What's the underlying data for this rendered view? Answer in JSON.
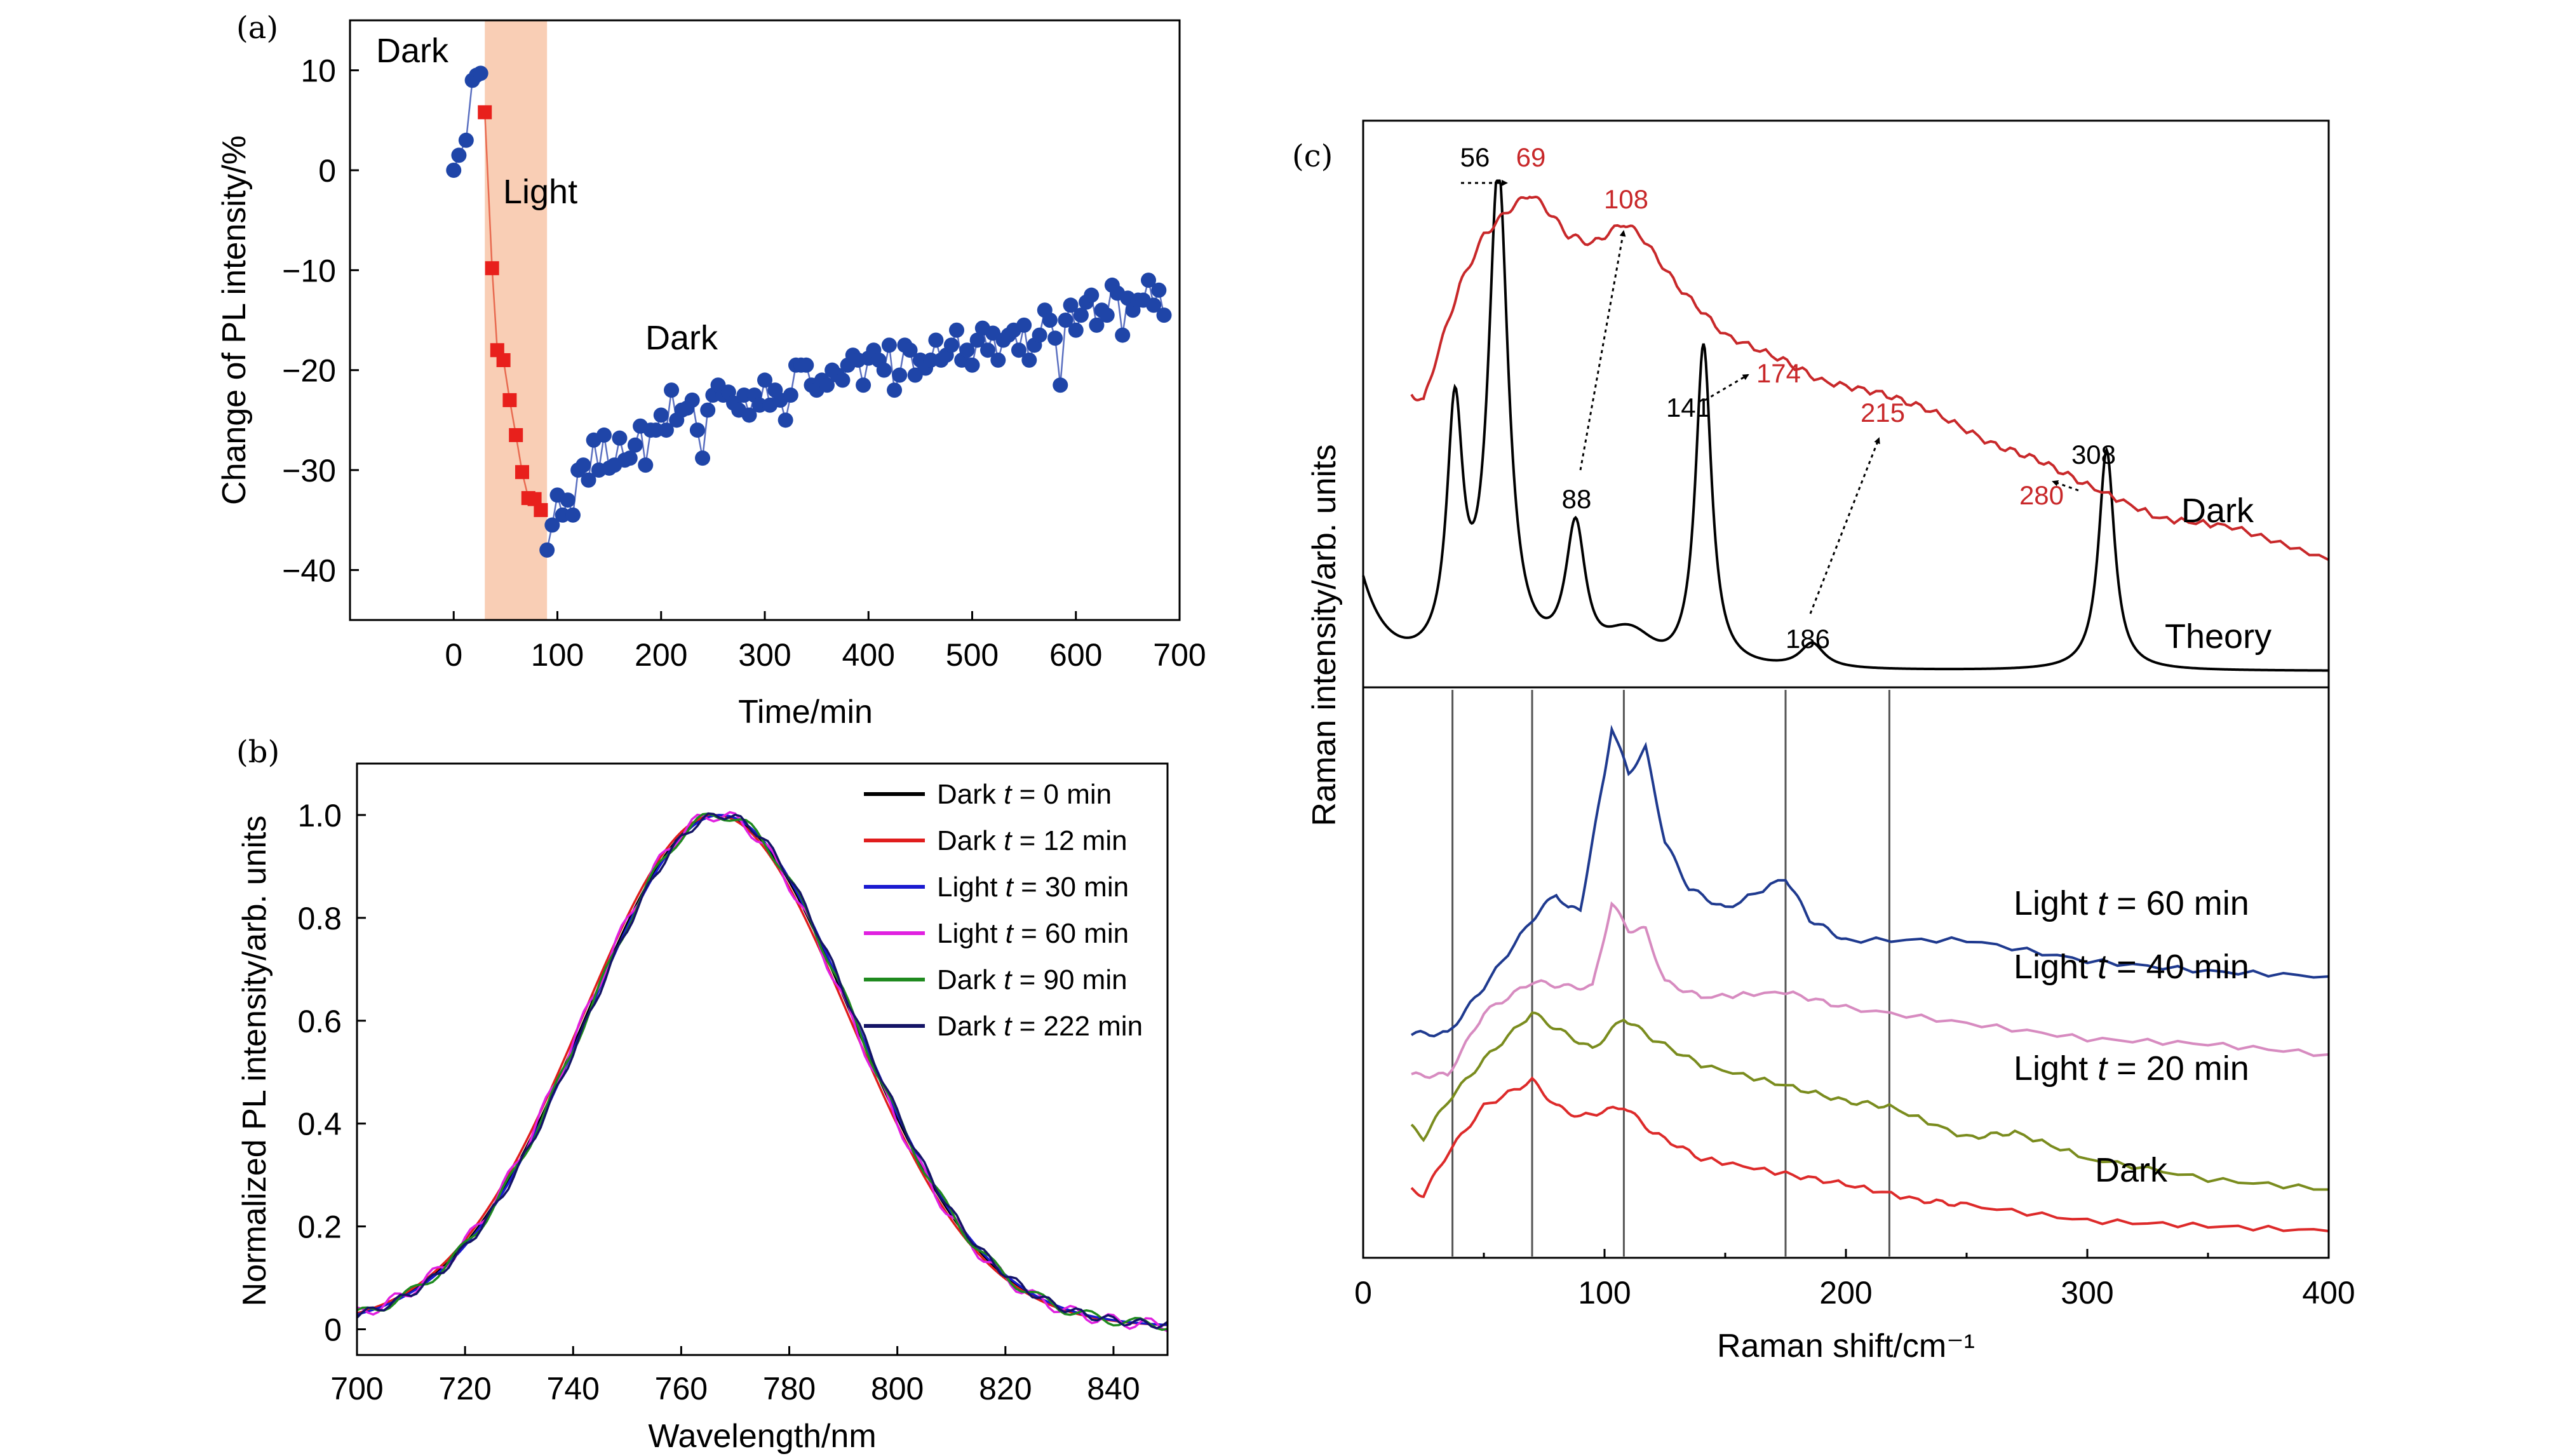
{
  "colors": {
    "dark_series": "#1f45a8",
    "light_series": "#e8201c",
    "light_band": "#f8c6a8",
    "exp_red": "#c8282a",
    "theory": "#000000"
  },
  "chart_data": [
    {
      "panel": "(a)",
      "type": "scatter",
      "xlabel": "Time/min",
      "ylabel": "Change of PL intensity/%",
      "xlim": [
        -100,
        700
      ],
      "ylim": [
        -45,
        15
      ],
      "xticks": [
        0,
        100,
        200,
        300,
        400,
        500,
        600,
        700
      ],
      "yticks": [
        10,
        0,
        -10,
        -20,
        -30,
        -40
      ],
      "annotations": [
        "Dark",
        "Light",
        "Dark"
      ],
      "highlight_band": [
        30,
        90
      ],
      "series": [
        {
          "key": "dark_before",
          "x": [
            0,
            5,
            12,
            18,
            22,
            26
          ],
          "y": [
            0,
            1.5,
            3,
            9,
            9.5,
            9.7
          ]
        },
        {
          "key": "light",
          "x": [
            30,
            37,
            42,
            48,
            54,
            60,
            66,
            72,
            78,
            84
          ],
          "y": [
            5.8,
            -9.8,
            -18,
            -19,
            -23,
            -26.5,
            -30.2,
            -32.8,
            -32.9,
            -34
          ]
        },
        {
          "key": "dark_after",
          "x": [
            90,
            95,
            100,
            105,
            110,
            115,
            120,
            125,
            130,
            135,
            140,
            145,
            150,
            155,
            160,
            165,
            170,
            175,
            180,
            185,
            190,
            195,
            200,
            205,
            210,
            215,
            220,
            225,
            230,
            235,
            240,
            245,
            250,
            255,
            260,
            265,
            270,
            275,
            280,
            285,
            290,
            295,
            300,
            305,
            310,
            315,
            320,
            325,
            330,
            335,
            340,
            345,
            350,
            355,
            360,
            365,
            370,
            375,
            380,
            385,
            390,
            395,
            400,
            405,
            410,
            415,
            420,
            425,
            430,
            435,
            440,
            445,
            450,
            455,
            460,
            465,
            470,
            475,
            480,
            485,
            490,
            495,
            500,
            505,
            510,
            515,
            520,
            525,
            530,
            535,
            540,
            545,
            550,
            555,
            560,
            565,
            570,
            575,
            580,
            585,
            590,
            595,
            600,
            605,
            610,
            615,
            620,
            625,
            630,
            635,
            640,
            645,
            650,
            655,
            660,
            665,
            670,
            675,
            680,
            685
          ],
          "y": [
            -38,
            -35.5,
            -32.5,
            -34.5,
            -33,
            -34.5,
            -30,
            -29.5,
            -31,
            -27,
            -30,
            -26.5,
            -29.8,
            -29.5,
            -26.8,
            -29,
            -28.8,
            -27.5,
            -25.6,
            -29.5,
            -26,
            -26,
            -24.5,
            -26,
            -22,
            -25,
            -24,
            -23.8,
            -23,
            -26,
            -28.8,
            -24,
            -22.5,
            -21.5,
            -22.5,
            -22.2,
            -23.3,
            -24,
            -22.5,
            -24.5,
            -22.5,
            -23.5,
            -21,
            -23.5,
            -22,
            -23,
            -25,
            -22.5,
            -19.5,
            -19.5,
            -19.5,
            -21.5,
            -22,
            -21,
            -21.5,
            -20,
            -20.5,
            -21,
            -19.5,
            -18.5,
            -19,
            -21.5,
            -18.8,
            -18,
            -19,
            -20,
            -17.5,
            -22,
            -20.5,
            -17.5,
            -18,
            -20.5,
            -19,
            -19.8,
            -19,
            -17,
            -19,
            -18.5,
            -17.5,
            -16,
            -19,
            -18,
            -19.5,
            -17,
            -15.8,
            -18,
            -16.3,
            -19,
            -17,
            -16.5,
            -16,
            -18,
            -15.5,
            -19,
            -17.5,
            -16.5,
            -14,
            -15,
            -16.8,
            -21.5,
            -15,
            -13.5,
            -16,
            -14.5,
            -13.2,
            -12.5,
            -15.5,
            -14,
            -14.5,
            -11.5,
            -12.3,
            -16.5,
            -12.8,
            -14,
            -13,
            -13,
            -11,
            -13.5,
            -12,
            -14.5
          ]
        }
      ]
    },
    {
      "panel": "(b)",
      "type": "line",
      "xlabel": "Wavelength/nm",
      "ylabel": "Normalized PL intensity/arb. units",
      "xlim": [
        700,
        850
      ],
      "ylim": [
        -0.05,
        1.1
      ],
      "xticks": [
        700,
        720,
        740,
        760,
        780,
        800,
        820,
        840
      ],
      "yticks": [
        0,
        0.2,
        0.4,
        0.6,
        0.8,
        1.0
      ],
      "peak_center_nm": 767,
      "fwhm_nm": 58,
      "baseline": 0.005,
      "legend_position": "top-right",
      "series": [
        {
          "name_prefix": "Dark ",
          "name_var": "t",
          "name_suffix": " = 0 min",
          "color": "#000000",
          "shift": 0
        },
        {
          "name_prefix": "Dark ",
          "name_var": "t",
          "name_suffix": " = 12 min",
          "color": "#e01d1d",
          "shift": -0.6
        },
        {
          "name_prefix": "Light ",
          "name_var": "t",
          "name_suffix": " = 30 min",
          "color": "#1a1ad0",
          "shift": 0.3
        },
        {
          "name_prefix": "Light ",
          "name_var": "t",
          "name_suffix": " = 60 min",
          "color": "#e020e0",
          "shift": -0.3
        },
        {
          "name_prefix": "Dark ",
          "name_var": "t",
          "name_suffix": " = 90 min",
          "color": "#1f8a1f",
          "shift": 0.2
        },
        {
          "name_prefix": "Dark ",
          "name_var": "t",
          "name_suffix": " = 222 min",
          "color": "#141466",
          "shift": 0.5
        }
      ]
    },
    {
      "panel": "(c)",
      "type": "line",
      "xlabel": "Raman shift/cm⁻¹",
      "ylabel": "Raman intensity/arb. units",
      "xlim": [
        0,
        400
      ],
      "xticks": [
        0,
        100,
        200,
        300,
        400
      ],
      "vertical_lines": [
        37,
        70,
        108,
        175,
        218
      ],
      "top_labels": [
        "Dark",
        "Theory"
      ],
      "peak_labels_theory": [
        "56",
        "88",
        "141",
        "186",
        "308"
      ],
      "peak_labels_dark": [
        "69",
        "108",
        "174",
        "215",
        "280"
      ],
      "theory_peaks": [
        {
          "x": 56,
          "h": 1.0,
          "w": 5
        },
        {
          "x": 38,
          "h": 0.5,
          "w": 4
        },
        {
          "x": 88,
          "h": 0.28,
          "w": 5
        },
        {
          "x": 141,
          "h": 0.66,
          "w": 4
        },
        {
          "x": 186,
          "h": 0.05,
          "w": 6
        },
        {
          "x": 308,
          "h": 0.45,
          "w": 4
        }
      ],
      "dark_top": {
        "x": [
          20,
          25,
          30,
          40,
          50,
          60,
          69,
          75,
          85,
          95,
          108,
          115,
          130,
          150,
          174,
          190,
          215,
          235,
          260,
          280,
          300,
          330,
          360,
          400
        ],
        "y": [
          0.52,
          0.5,
          0.6,
          0.78,
          0.9,
          0.96,
          1.0,
          0.97,
          0.9,
          0.88,
          0.93,
          0.9,
          0.78,
          0.66,
          0.6,
          0.55,
          0.52,
          0.48,
          0.4,
          0.36,
          0.3,
          0.22,
          0.2,
          0.12
        ]
      },
      "bottom_series": [
        {
          "name_prefix": "Light ",
          "name_var": "t",
          "name_suffix": " = 60 min",
          "color": "#1f3a8f",
          "x": [
            20,
            35,
            50,
            70,
            80,
            85,
            90,
            100,
            103,
            110,
            117,
            125,
            135,
            150,
            175,
            185,
            200,
            250,
            300,
            350,
            400
          ],
          "y": [
            0.38,
            0.38,
            0.47,
            0.6,
            0.65,
            0.62,
            0.62,
            0.88,
            0.97,
            0.88,
            0.93,
            0.75,
            0.66,
            0.62,
            0.68,
            0.6,
            0.56,
            0.56,
            0.52,
            0.5,
            0.49
          ]
        },
        {
          "name_prefix": "Light ",
          "name_var": "t",
          "name_suffix": " = 40 min",
          "color": "#d78bc0",
          "x": [
            20,
            35,
            50,
            70,
            85,
            95,
            103,
            110,
            117,
            125,
            140,
            175,
            200,
            250,
            300,
            350,
            400
          ],
          "y": [
            0.3,
            0.3,
            0.42,
            0.48,
            0.47,
            0.47,
            0.63,
            0.58,
            0.58,
            0.48,
            0.45,
            0.46,
            0.43,
            0.4,
            0.37,
            0.36,
            0.34
          ]
        },
        {
          "name_prefix": "Light ",
          "name_var": "t",
          "name_suffix": " = 20 min",
          "color": "#7a8c1e",
          "x": [
            20,
            25,
            35,
            50,
            70,
            80,
            95,
            108,
            120,
            140,
            175,
            200,
            218,
            250,
            270,
            300,
            350,
            400
          ],
          "y": [
            0.2,
            0.18,
            0.25,
            0.33,
            0.42,
            0.39,
            0.35,
            0.41,
            0.37,
            0.32,
            0.28,
            0.25,
            0.24,
            0.18,
            0.19,
            0.14,
            0.1,
            0.08
          ]
        },
        {
          "name": "Dark",
          "color": "#dd2a2a",
          "x": [
            20,
            25,
            35,
            50,
            70,
            80,
            90,
            108,
            120,
            140,
            175,
            200,
            230,
            250,
            300,
            350,
            400
          ],
          "y": [
            0.08,
            0.07,
            0.15,
            0.24,
            0.29,
            0.24,
            0.22,
            0.24,
            0.19,
            0.14,
            0.11,
            0.09,
            0.06,
            0.05,
            0.02,
            0.01,
            0.0
          ]
        }
      ]
    }
  ]
}
